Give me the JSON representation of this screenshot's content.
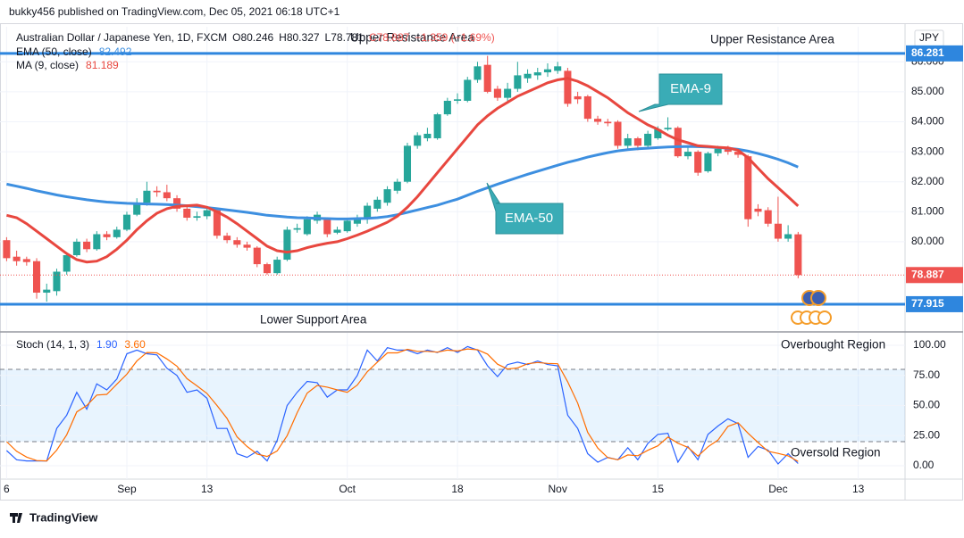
{
  "header": {
    "publisher": "bukky456 published on TradingView.com, Dec 05, 2021 06:18 UTC+1",
    "logo": "TradingView"
  },
  "chart_data": [
    {
      "type": "candlestick",
      "title": "Australian Dollar / Japanese Yen, 1D, FXCM",
      "ohlc_text": [
        "O80.246",
        "H80.327",
        "L78.781",
        "C78.887",
        "−1.359 (−1.69%)"
      ],
      "currency": "JPY",
      "up_color": "#26a69a",
      "down_color": "#ef5350",
      "open": [
        80.05,
        79.5,
        79.42,
        79.35,
        78.3,
        78.35,
        79.0,
        79.55,
        80.0,
        79.75,
        80.25,
        80.15,
        80.4,
        80.9,
        81.3,
        81.7,
        81.65,
        81.45,
        81.1,
        80.8,
        80.85,
        81.05,
        80.2,
        80.05,
        79.9,
        79.8,
        79.25,
        78.95,
        79.4,
        80.4,
        80.25,
        80.7,
        80.75,
        80.3,
        80.35,
        80.6,
        80.75,
        81.1,
        81.3,
        81.7,
        82.0,
        83.2,
        83.45,
        83.45,
        84.25,
        84.7,
        84.7,
        85.4,
        85.9,
        85.1,
        84.8,
        85.1,
        85.45,
        85.55,
        85.65,
        85.7,
        85.7,
        84.85,
        84.85,
        84.1,
        84.0,
        84.0,
        83.2,
        83.45,
        83.2,
        83.45,
        83.75,
        83.8,
        82.85,
        83.0,
        82.35,
        82.95,
        83.1,
        83.0,
        82.85,
        81.1,
        81.05,
        80.6,
        80.1,
        80.246
      ],
      "high": [
        80.15,
        79.7,
        79.5,
        79.45,
        78.6,
        79.1,
        79.65,
        80.1,
        80.1,
        80.35,
        80.35,
        80.5,
        81.0,
        81.45,
        82.0,
        81.85,
        81.9,
        81.55,
        81.2,
        81.0,
        81.15,
        81.1,
        80.3,
        80.15,
        80.0,
        79.85,
        79.3,
        79.5,
        80.5,
        80.6,
        80.85,
        81.0,
        80.8,
        80.5,
        80.8,
        80.9,
        81.3,
        81.5,
        81.85,
        82.1,
        83.3,
        83.65,
        83.8,
        84.3,
        84.8,
        84.95,
        85.5,
        86.0,
        86.2,
        85.2,
        85.3,
        86.0,
        85.75,
        85.8,
        85.95,
        86.0,
        85.8,
        85.0,
        84.9,
        84.2,
        84.1,
        84.05,
        83.6,
        83.5,
        83.7,
        83.85,
        84.15,
        83.85,
        83.15,
        83.05,
        83.0,
        83.2,
        83.2,
        83.1,
        82.9,
        81.25,
        81.15,
        81.5,
        80.55,
        80.327
      ],
      "low": [
        79.35,
        79.2,
        79.2,
        78.1,
        78.0,
        78.2,
        78.9,
        79.5,
        79.65,
        79.7,
        80.05,
        80.1,
        80.35,
        80.85,
        81.2,
        81.5,
        81.35,
        81.0,
        80.7,
        80.7,
        80.75,
        80.1,
        79.95,
        79.8,
        79.7,
        79.15,
        78.9,
        78.9,
        79.35,
        80.3,
        80.2,
        80.6,
        80.15,
        80.25,
        80.3,
        80.5,
        80.6,
        81.0,
        81.2,
        81.6,
        81.95,
        83.1,
        83.35,
        83.4,
        84.2,
        84.6,
        84.65,
        85.3,
        84.95,
        84.7,
        84.7,
        85.0,
        85.3,
        85.4,
        85.5,
        85.6,
        84.5,
        84.6,
        84.0,
        83.9,
        83.85,
        83.1,
        83.1,
        83.05,
        83.1,
        83.4,
        83.7,
        82.8,
        82.75,
        82.2,
        82.3,
        82.85,
        82.9,
        82.8,
        80.5,
        80.85,
        80.5,
        80.0,
        80.0,
        78.781
      ],
      "close": [
        79.45,
        79.35,
        79.32,
        78.3,
        78.4,
        79.0,
        79.55,
        80.0,
        79.75,
        80.25,
        80.15,
        80.4,
        80.9,
        81.3,
        81.7,
        81.65,
        81.45,
        81.1,
        80.8,
        80.85,
        81.05,
        80.2,
        80.05,
        79.9,
        79.8,
        79.25,
        78.95,
        79.4,
        80.4,
        80.45,
        80.75,
        80.9,
        80.25,
        80.4,
        80.7,
        80.75,
        81.2,
        81.4,
        81.75,
        82.0,
        83.2,
        83.55,
        83.6,
        84.25,
        84.7,
        84.75,
        85.4,
        85.85,
        85.0,
        84.8,
        85.1,
        85.55,
        85.6,
        85.65,
        85.75,
        85.85,
        84.6,
        84.75,
        84.1,
        84.0,
        83.95,
        83.2,
        83.45,
        83.2,
        83.6,
        83.75,
        83.8,
        82.85,
        83.0,
        82.3,
        82.95,
        83.1,
        83.0,
        82.9,
        80.75,
        81.0,
        80.6,
        80.1,
        80.25,
        78.887
      ],
      "series": [
        {
          "name": "EMA (50, close)",
          "color": "#3d8fe0",
          "value_label": "82.492",
          "values": [
            81.92,
            81.85,
            81.78,
            81.7,
            81.63,
            81.56,
            81.5,
            81.45,
            81.4,
            81.36,
            81.32,
            81.3,
            81.28,
            81.27,
            81.26,
            81.25,
            81.24,
            81.22,
            81.2,
            81.17,
            81.14,
            81.1,
            81.06,
            81.02,
            80.98,
            80.93,
            80.88,
            80.85,
            80.82,
            80.8,
            80.79,
            80.78,
            80.77,
            80.76,
            80.76,
            80.77,
            80.78,
            80.8,
            80.84,
            80.9,
            80.98,
            81.06,
            81.14,
            81.22,
            81.32,
            81.42,
            81.55,
            81.68,
            81.8,
            81.92,
            82.03,
            82.14,
            82.25,
            82.35,
            82.45,
            82.55,
            82.65,
            82.73,
            82.82,
            82.9,
            82.97,
            83.03,
            83.07,
            83.1,
            83.12,
            83.14,
            83.16,
            83.17,
            83.18,
            83.17,
            83.16,
            83.14,
            83.12,
            83.08,
            83.02,
            82.94,
            82.85,
            82.75,
            82.63,
            82.492
          ]
        },
        {
          "name": "MA (9, close)",
          "color": "#e8473f",
          "value_label": "81.189",
          "values": [
            80.88,
            80.8,
            80.6,
            80.35,
            80.1,
            79.85,
            79.6,
            79.4,
            79.32,
            79.35,
            79.5,
            79.75,
            80.05,
            80.4,
            80.7,
            80.95,
            81.1,
            81.18,
            81.2,
            81.22,
            81.15,
            81.0,
            80.82,
            80.6,
            80.35,
            80.1,
            79.85,
            79.7,
            79.65,
            79.7,
            79.8,
            79.88,
            79.95,
            80.0,
            80.1,
            80.22,
            80.35,
            80.5,
            80.65,
            80.85,
            81.15,
            81.5,
            81.9,
            82.3,
            82.7,
            83.1,
            83.5,
            83.9,
            84.2,
            84.45,
            84.65,
            84.85,
            85.0,
            85.15,
            85.3,
            85.4,
            85.45,
            85.35,
            85.2,
            85.0,
            84.8,
            84.55,
            84.3,
            84.1,
            83.9,
            83.75,
            83.55,
            83.4,
            83.3,
            83.2,
            83.18,
            83.15,
            83.13,
            83.05,
            82.8,
            82.45,
            82.1,
            81.8,
            81.5,
            81.189
          ]
        }
      ],
      "hlines": [
        {
          "value": 86.281,
          "label": "86.281",
          "color": "#2e86de"
        },
        {
          "value": 77.915,
          "label": "77.915",
          "color": "#2e86de"
        }
      ],
      "last_price": {
        "value": 78.887,
        "label": "78.887"
      },
      "annotations": [
        "Upper Resistance Area",
        "Upper Resistance Area",
        "Lower Support Area",
        "EMA-9",
        "EMA-50"
      ],
      "ylim": [
        77.05,
        87.17
      ],
      "yticks": [
        {
          "value": 80,
          "label": "80.000"
        },
        {
          "value": 81,
          "label": "81.000"
        },
        {
          "value": 82,
          "label": "82.000"
        },
        {
          "value": 83,
          "label": "83.000"
        },
        {
          "value": 84,
          "label": "84.000"
        },
        {
          "value": 85,
          "label": "85.000"
        },
        {
          "value": 86,
          "label": "86.000"
        }
      ],
      "xlim": [
        -0.66,
        89.67
      ],
      "grid": true
    },
    {
      "type": "line",
      "title": "Stoch (14, 1, 3)",
      "series": [
        {
          "name": "%K",
          "color": "#2962ff",
          "value_label": "1.90",
          "values": [
            12.6,
            5,
            4,
            4,
            4,
            31,
            42,
            61,
            47,
            68,
            63,
            72,
            93,
            96,
            93,
            92,
            81,
            75,
            61,
            63,
            56,
            31,
            31,
            10,
            7,
            12,
            4,
            21,
            50,
            61,
            70,
            69,
            57,
            63,
            63,
            75,
            96,
            87,
            98,
            96,
            96,
            93,
            96,
            94,
            98,
            94,
            99,
            96,
            83,
            74,
            84,
            86,
            84,
            87,
            84,
            83,
            42,
            31,
            10,
            3,
            7,
            5,
            15,
            5,
            18.5,
            26,
            27,
            3,
            16,
            5,
            26,
            33,
            39,
            35,
            7,
            16,
            13,
            1.5,
            10,
            1.9
          ]
        },
        {
          "name": "%D",
          "color": "#ff6d00",
          "value_label": "3.60",
          "values": [
            20,
            12,
            7.2,
            4.3,
            4,
            13,
            25.7,
            44.7,
            50,
            58.7,
            59.3,
            67.7,
            76,
            87,
            94,
            93.7,
            88.7,
            82.7,
            72.3,
            66.3,
            60,
            50,
            39.3,
            24,
            16,
            9.7,
            7.7,
            12.3,
            25,
            44,
            60.3,
            66.7,
            65.3,
            63,
            61,
            67,
            78,
            86,
            93.7,
            93.7,
            96.7,
            95,
            95,
            94.3,
            96,
            95.3,
            97,
            96.3,
            92.7,
            84.3,
            80.3,
            81.3,
            84.7,
            85.7,
            85,
            84.7,
            69.7,
            52,
            27.7,
            14.7,
            6.7,
            5,
            9,
            8.3,
            12.8,
            16.5,
            23.8,
            18.7,
            15.3,
            8,
            15.7,
            21.3,
            32.7,
            35.7,
            27,
            19.3,
            12,
            10.2,
            8.2,
            3.6
          ]
        }
      ],
      "bands": [
        20,
        80
      ],
      "annotations": [
        "Overbought Region",
        "Oversold Region"
      ],
      "ylim": [
        -11.1,
        110.4
      ],
      "yticks": [
        {
          "value": 0,
          "label": "0.00"
        },
        {
          "value": 25,
          "label": "25.00"
        },
        {
          "value": 50,
          "label": "50.00"
        },
        {
          "value": 75,
          "label": "75.00"
        },
        {
          "value": 100,
          "label": "100.00"
        }
      ],
      "xlim": [
        -0.66,
        89.67
      ],
      "xticks": [
        {
          "value": 0,
          "label": "6"
        },
        {
          "value": 12,
          "label": "Sep"
        },
        {
          "value": 20,
          "label": "13"
        },
        {
          "value": 34,
          "label": "Oct"
        },
        {
          "value": 45,
          "label": "18"
        },
        {
          "value": 55,
          "label": "Nov"
        },
        {
          "value": 65,
          "label": "15"
        },
        {
          "value": 77,
          "label": "Dec"
        },
        {
          "value": 85,
          "label": "13"
        }
      ],
      "grid": true
    }
  ]
}
